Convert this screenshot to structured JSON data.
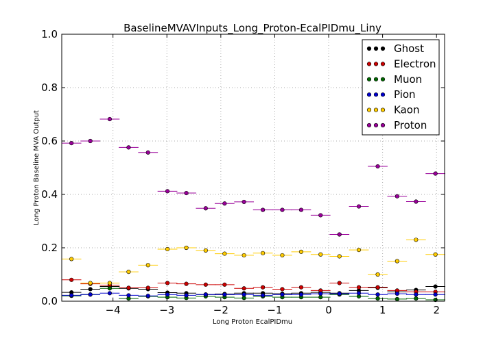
{
  "chart_data": {
    "type": "scatter",
    "title": "BaselineMVAVInputs_Long_Proton-EcalPIDmu_Liny",
    "xlabel": "Long Proton EcalPIDmu",
    "ylabel": "Long Proton Baseline MVA Output",
    "xlim": [
      -4.95,
      2.15
    ],
    "ylim": [
      0.0,
      1.0
    ],
    "x_ticks": [
      -4,
      -3,
      -2,
      -1,
      0,
      1,
      2
    ],
    "x_tick_labels": [
      "−4",
      "−3",
      "−2",
      "−1",
      "0",
      "1",
      "2"
    ],
    "y_ticks": [
      0.0,
      0.2,
      0.4,
      0.6,
      0.8,
      1.0
    ],
    "y_tick_labels": [
      "0.0",
      "0.2",
      "0.4",
      "0.6",
      "0.8",
      "1.0"
    ],
    "grid": true,
    "legend_position": "top-right",
    "bin_half_width": 0.183,
    "x": [
      -4.77,
      -4.42,
      -4.06,
      -3.71,
      -3.35,
      -2.99,
      -2.64,
      -2.28,
      -1.93,
      -1.57,
      -1.22,
      -0.86,
      -0.51,
      -0.15,
      0.2,
      0.56,
      0.91,
      1.27,
      1.62,
      1.98
    ],
    "series": [
      {
        "name": "Ghost",
        "color": "#000000",
        "values": [
          0.033,
          0.045,
          0.055,
          0.048,
          0.045,
          0.032,
          0.03,
          0.025,
          0.027,
          0.03,
          0.03,
          0.028,
          0.03,
          0.033,
          0.03,
          0.04,
          0.05,
          0.035,
          0.042,
          0.055
        ]
      },
      {
        "name": "Electron",
        "color": "#cc0000",
        "values": [
          0.08,
          0.065,
          0.06,
          0.05,
          0.05,
          0.068,
          0.065,
          0.062,
          0.062,
          0.048,
          0.052,
          0.045,
          0.052,
          0.04,
          0.068,
          0.052,
          0.052,
          0.04,
          0.035,
          0.035
        ]
      },
      {
        "name": "Muon",
        "color": "#006600",
        "values": [
          0.02,
          0.025,
          0.048,
          0.01,
          0.018,
          0.015,
          0.012,
          0.018,
          0.015,
          0.012,
          0.018,
          0.015,
          0.015,
          0.015,
          0.025,
          0.018,
          0.01,
          0.008,
          0.01,
          0.005
        ]
      },
      {
        "name": "Pion",
        "color": "#0000cc",
        "values": [
          0.022,
          0.025,
          0.03,
          0.022,
          0.02,
          0.025,
          0.022,
          0.025,
          0.025,
          0.025,
          0.022,
          0.025,
          0.025,
          0.028,
          0.028,
          0.03,
          0.025,
          0.028,
          0.025,
          0.025
        ]
      },
      {
        "name": "Kaon",
        "color": "#ffcc00",
        "values": [
          0.158,
          0.068,
          0.068,
          0.11,
          0.135,
          0.195,
          0.2,
          0.19,
          0.178,
          0.172,
          0.18,
          0.172,
          0.185,
          0.175,
          0.168,
          0.192,
          0.1,
          0.15,
          0.23,
          0.175
        ]
      },
      {
        "name": "Proton",
        "color": "#990099",
        "values": [
          0.592,
          0.6,
          0.682,
          0.576,
          0.557,
          0.412,
          0.405,
          0.348,
          0.366,
          0.372,
          0.342,
          0.342,
          0.342,
          0.322,
          0.25,
          0.355,
          0.505,
          0.393,
          0.373,
          0.478
        ]
      }
    ]
  }
}
